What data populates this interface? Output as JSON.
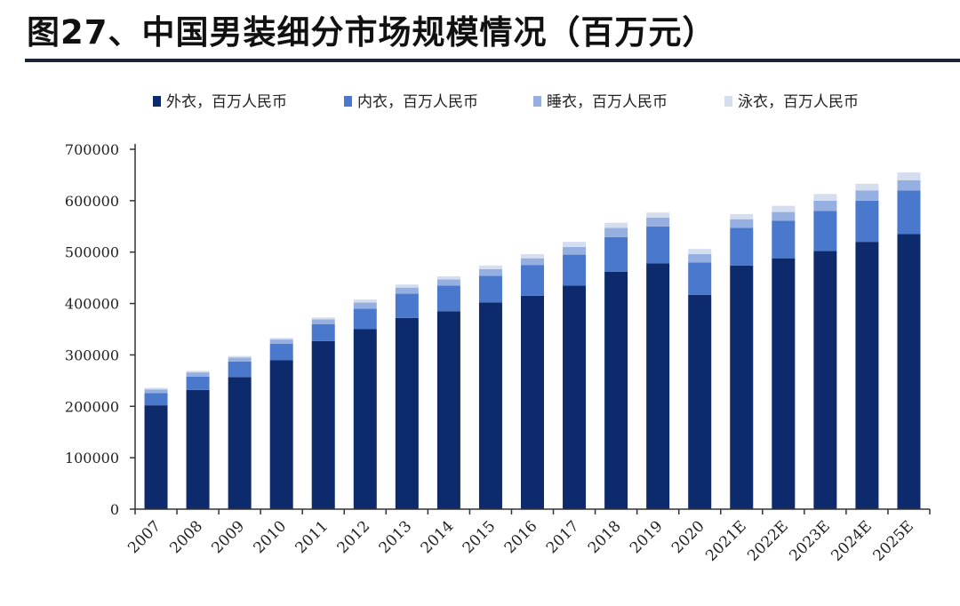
{
  "header": {
    "title": "图27、中国男装细分市场规模情况（百万元）"
  },
  "colors": {
    "outer": "#0d2a6c",
    "inner": "#4a78cc",
    "knit": "#95b0e0",
    "swim": "#d5deef",
    "rule": "#1b2433"
  },
  "chart_data": {
    "type": "bar",
    "stacked": true,
    "categories": [
      "2007",
      "2008",
      "2009",
      "2010",
      "2011",
      "2012",
      "2013",
      "2014",
      "2015",
      "2016",
      "2017",
      "2018",
      "2019",
      "2020",
      "2021E",
      "2022E",
      "2023E",
      "2024E",
      "2025E"
    ],
    "series": [
      {
        "name": "外衣，百万人民币",
        "color": "#0d2a6c",
        "values": [
          202000,
          232000,
          257000,
          290000,
          327000,
          350000,
          372000,
          385000,
          402000,
          415000,
          435000,
          462000,
          478000,
          417000,
          474000,
          488000,
          502000,
          520000,
          535000
        ]
      },
      {
        "name": "内衣，百万人民币",
        "color": "#4a78cc",
        "values": [
          24000,
          26000,
          30000,
          32000,
          33000,
          40000,
          47000,
          50000,
          52000,
          60000,
          60000,
          67000,
          72000,
          63000,
          73000,
          73000,
          78000,
          80000,
          85000
        ]
      },
      {
        "name": "睡衣，百万人民币",
        "color": "#95b0e0",
        "values": [
          7000,
          8000,
          8000,
          8000,
          9000,
          12000,
          12000,
          12000,
          13000,
          13000,
          15000,
          18000,
          17000,
          16000,
          17000,
          17000,
          20000,
          20000,
          20000
        ]
      },
      {
        "name": "泳衣，百万人民币",
        "color": "#d5deef",
        "values": [
          3000,
          3000,
          3000,
          3000,
          4000,
          6000,
          6000,
          6000,
          7000,
          8000,
          10000,
          10000,
          10000,
          10000,
          10000,
          12000,
          13000,
          13000,
          15000
        ]
      }
    ],
    "ylim": [
      0,
      700000
    ],
    "yticks": [
      "700000",
      "600000",
      "500000",
      "400000",
      "300000",
      "200000",
      "100000",
      "0"
    ],
    "ytick_values": [
      700000,
      600000,
      500000,
      400000,
      300000,
      200000,
      100000,
      0
    ],
    "legend_position": "top",
    "grid": false
  }
}
